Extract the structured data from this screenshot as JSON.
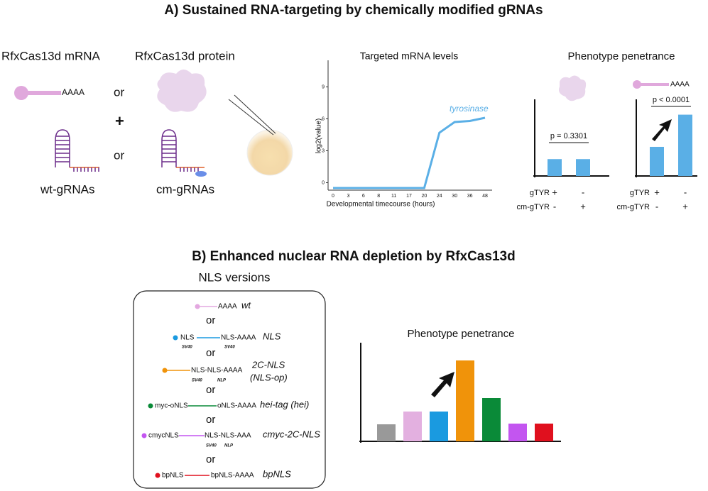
{
  "panel_a": {
    "title": "A) Sustained RNA-targeting by chemically modified gRNAs",
    "mrna_label": "RfxCas13d mRNA",
    "protein_label": "RfxCas13d protein",
    "polya": "AAAA",
    "or": "or",
    "plus": "+",
    "wt_grna": "wt-gRNAs",
    "cm_grna": "cm-gRNAs",
    "line_chart": {
      "type": "line",
      "title": "Targeted mRNA levels",
      "x_label": "Developmental timecourse (hours)",
      "y_label": "log2(value)",
      "categories": [
        "0",
        "3",
        "6",
        "8",
        "11",
        "17",
        "20",
        "24",
        "30",
        "36",
        "48"
      ],
      "series": [
        {
          "name": "tyrosinase",
          "color": "#5aafe6",
          "values": [
            -0.5,
            -0.5,
            -0.5,
            -0.5,
            -0.5,
            -0.5,
            -0.5,
            4.7,
            5.7,
            5.8,
            6.1
          ]
        }
      ],
      "ylim": [
        -0.7,
        11.5
      ],
      "yticks": [
        0,
        3,
        6,
        9
      ]
    },
    "penetrance_title": "Phenotype penetrance",
    "bar_charts": [
      {
        "type": "bar",
        "color": "#5aafe6",
        "values": [
          22,
          22
        ],
        "ylim": [
          0,
          100
        ],
        "annotation": "p = 0.3301",
        "rows": [
          {
            "label": "gTYR",
            "cells": [
              "+",
              "-"
            ]
          },
          {
            "label": "cm-gTYR",
            "cells": [
              "-",
              "+"
            ]
          }
        ]
      },
      {
        "type": "bar",
        "color": "#5aafe6",
        "values": [
          38,
          80
        ],
        "ylim": [
          0,
          100
        ],
        "annotation": "p < 0.0001",
        "rows": [
          {
            "label": "gTYR",
            "cells": [
              "+",
              "-"
            ]
          },
          {
            "label": "cm-gTYR",
            "cells": [
              "-",
              "+"
            ]
          }
        ]
      }
    ]
  },
  "panel_b": {
    "title": "B) Enhanced nuclear RNA depletion by RfxCas13d",
    "nls_title": "NLS versions",
    "or": "or",
    "constructs": [
      {
        "name": "wt",
        "color": "#e3a8e0",
        "parts": [
          "AAAA"
        ],
        "subs": []
      },
      {
        "name": "NLS",
        "color": "#1a9ae0",
        "parts": [
          "NLS",
          "NLS-AAAA"
        ],
        "subs": [
          "SV40",
          "SV40"
        ]
      },
      {
        "name": "2C-NLS",
        "alias": "(NLS-op)",
        "color": "#f0930a",
        "parts": [
          "NLS-NLS-AAAA"
        ],
        "subs": [
          "SV40",
          "NLP"
        ]
      },
      {
        "name": "hei-tag (hei)",
        "color": "#0a8a38",
        "parts": [
          "myc-oNLS",
          "oNLS-AAAA"
        ],
        "subs": []
      },
      {
        "name": "cmyc-2C-NLS",
        "color": "#c355f0",
        "parts": [
          "cmycNLS",
          "NLS-NLS-AAA"
        ],
        "subs": [
          "SV40",
          "NLP"
        ]
      },
      {
        "name": "bpNLS",
        "color": "#e0101e",
        "parts": [
          "bpNLS",
          "bpNLS-AAAA"
        ],
        "subs": []
      }
    ],
    "bar_chart": {
      "type": "bar",
      "title": "Phenotype penetrance",
      "values": [
        24,
        42,
        42,
        114,
        61,
        25,
        25
      ],
      "colors": [
        "#999999",
        "#e3b0e0",
        "#1a9ae0",
        "#f0930a",
        "#0a8a38",
        "#c355f0",
        "#e0101e"
      ],
      "ylim": [
        0,
        139
      ]
    }
  }
}
